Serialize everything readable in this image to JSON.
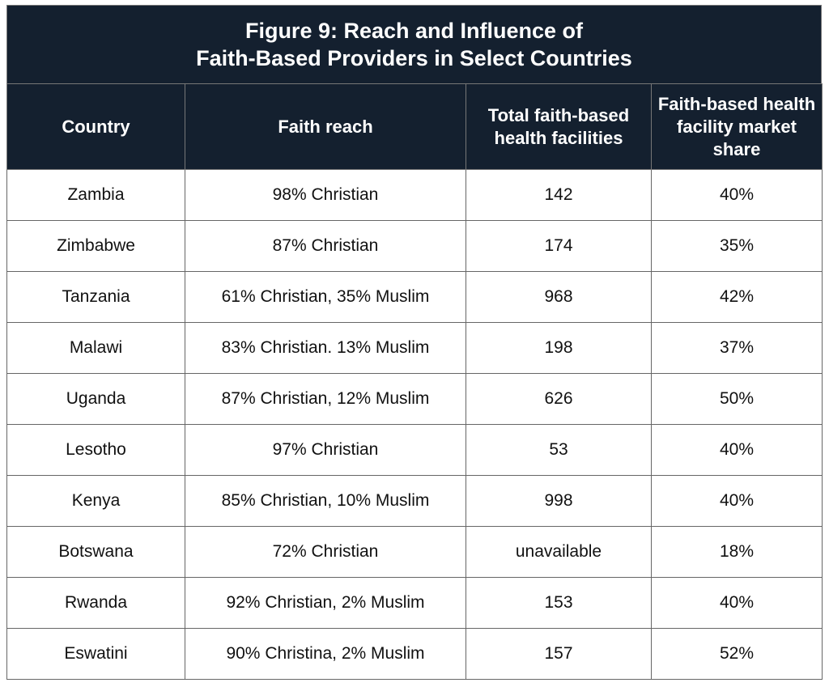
{
  "chart_data": {
    "type": "table",
    "title": [
      "Figure 9: Reach and Influence of",
      "Faith-Based Providers in Select Countries"
    ],
    "columns": [
      "Country",
      "Faith reach",
      "Total faith-based health facilities",
      "Faith-based health facility market share"
    ],
    "rows": [
      [
        "Zambia",
        "98% Christian",
        "142",
        "40%"
      ],
      [
        "Zimbabwe",
        "87% Christian",
        "174",
        "35%"
      ],
      [
        "Tanzania",
        "61% Christian, 35% Muslim",
        "968",
        "42%"
      ],
      [
        "Malawi",
        "83% Christian.  13% Muslim",
        "198",
        "37%"
      ],
      [
        "Uganda",
        "87% Christian, 12% Muslim",
        "626",
        "50%"
      ],
      [
        "Lesotho",
        "97% Christian",
        "53",
        "40%"
      ],
      [
        "Kenya",
        "85% Christian, 10% Muslim",
        "998",
        "40%"
      ],
      [
        "Botswana",
        "72% Christian",
        "unavailable",
        "18%"
      ],
      [
        "Rwanda",
        "92% Christian, 2% Muslim",
        "153",
        "40%"
      ],
      [
        "Eswatini",
        "90% Christina, 2% Muslim",
        "157",
        "52%"
      ]
    ],
    "colors": {
      "header_bg": "#14202f",
      "header_text": "#ffffff"
    }
  }
}
